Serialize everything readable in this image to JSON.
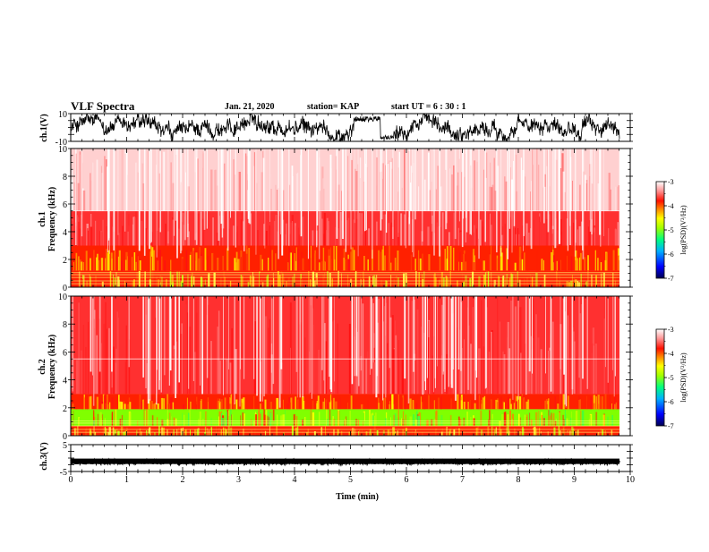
{
  "header": {
    "title": "VLF Spectra",
    "date": "Jan. 21, 2020",
    "station": "station= KAP",
    "start": "start  UT =   6 : 30 : 1"
  },
  "chart_data": [
    {
      "type": "line",
      "panel": "ch1-waveform",
      "ylabel": "ch.1(V)",
      "ylim": [
        -10,
        10
      ],
      "ytick_labels": [
        "10",
        "-10"
      ],
      "xlim": [
        0,
        10
      ],
      "color": "#000000"
    },
    {
      "type": "heatmap",
      "panel": "ch1-spectrogram",
      "ylabel": "ch.1\nFrequency (kHz)",
      "ylim": [
        0,
        10
      ],
      "ytick_labels": [
        "0",
        "2",
        "4",
        "6",
        "8",
        "10"
      ],
      "xlim": [
        0,
        10
      ],
      "bands": [
        {
          "from": 0,
          "to": 1.2,
          "level": "yellow-red"
        },
        {
          "from": 1.2,
          "to": 3.0,
          "level": "orange-yellow"
        },
        {
          "from": 3.0,
          "to": 5.5,
          "level": "red"
        },
        {
          "from": 5.5,
          "to": 10,
          "level": "light-red"
        }
      ],
      "colorbar": {
        "label": "log(PSD)(V²/Hz)",
        "range": [
          -7,
          -3
        ],
        "tick_labels": [
          "-3",
          "-4",
          "-5",
          "-6",
          "-7"
        ]
      }
    },
    {
      "type": "heatmap",
      "panel": "ch2-spectrogram",
      "ylabel": "ch.2\nFrequency (kHz)",
      "ylim": [
        0,
        10
      ],
      "ytick_labels": [
        "0",
        "2",
        "4",
        "6",
        "8",
        "10"
      ],
      "xlim": [
        0,
        10
      ],
      "bands": [
        {
          "from": 0,
          "to": 0.7,
          "level": "yellow-red"
        },
        {
          "from": 0.7,
          "to": 1.9,
          "level": "green-yellow"
        },
        {
          "from": 1.9,
          "to": 3.0,
          "level": "orange-yellow"
        },
        {
          "from": 3.0,
          "to": 10,
          "level": "red"
        }
      ],
      "colorbar": {
        "label": "log(PSD)(V²/Hz)",
        "range": [
          -7,
          -3
        ],
        "tick_labels": [
          "-3",
          "-4",
          "-5",
          "-6",
          "-7"
        ]
      }
    },
    {
      "type": "line",
      "panel": "ch3-waveform",
      "ylabel": "ch.3(V)",
      "ylim": [
        -5,
        5
      ],
      "ytick_labels": [
        "5",
        "-5"
      ],
      "xlim": [
        0,
        10
      ],
      "color": "#000000"
    }
  ],
  "xaxis": {
    "label": "Time (min)",
    "range": [
      0,
      10
    ],
    "tick_labels": [
      "0",
      "1",
      "2",
      "3",
      "4",
      "5",
      "6",
      "7",
      "8",
      "9",
      "10"
    ]
  },
  "colors": {
    "colormap": [
      "#000060",
      "#0000ff",
      "#00a0ff",
      "#00e0a0",
      "#40ff00",
      "#c0ff00",
      "#ffff00",
      "#ffa000",
      "#ff2000",
      "#ff8080",
      "#ffffff"
    ]
  }
}
